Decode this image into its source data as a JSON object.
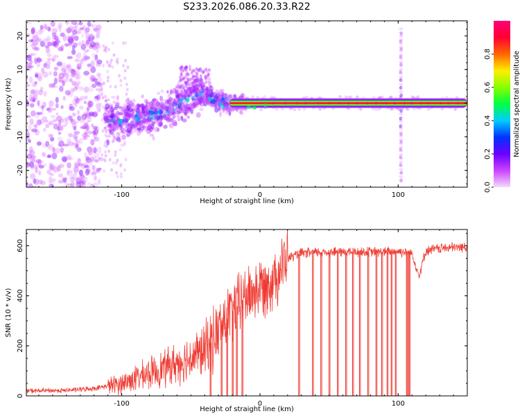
{
  "figure": {
    "title": "S233.2026.086.20.33.R22"
  },
  "colors": {
    "snr_line": "#ee3b32",
    "axis": "#000000",
    "colorbar_stops": [
      "#f2d9ff",
      "#cc44ff",
      "#6a00ff",
      "#0033ff",
      "#00ccff",
      "#00ff44",
      "#88ff00",
      "#ffee00",
      "#ff6600",
      "#ff0033",
      "#ff0077"
    ]
  },
  "chart_data": [
    {
      "type": "heatmap",
      "title": "S233.2026.086.20.33.R22",
      "xlabel": "Height of straight line (km)",
      "ylabel": "Frequency (Hz)",
      "xlim": [
        -169,
        150
      ],
      "ylim": [
        -25,
        24.5
      ],
      "xticks": [
        -100,
        0,
        100
      ],
      "yticks": [
        -20,
        -10,
        0,
        10,
        20
      ],
      "colorbar": {
        "label": "Normalized spectral amplitude",
        "range": [
          0,
          1
        ],
        "ticks": [
          0.0,
          0.2,
          0.4,
          0.6,
          0.8
        ]
      },
      "features": {
        "carrier_line": {
          "frequency_hz": 0,
          "x_start_km": -22,
          "x_end_km": 150,
          "amplitude": 0.9
        },
        "scatter_region_km": [
          -169,
          -115
        ],
        "dispersed_trend": {
          "x_km": [
            -100,
            -70,
            -45,
            -25,
            -10
          ],
          "center_freq_hz": [
            -5,
            -3,
            3,
            0,
            0
          ]
        },
        "vertical_spike_km": 102
      }
    },
    {
      "type": "line",
      "xlabel": "Height of straight line (km)",
      "ylabel": "SNR (10 * v/v)",
      "xlim": [
        -169,
        150
      ],
      "ylim": [
        0,
        665
      ],
      "xticks": [
        -100,
        0,
        100
      ],
      "yticks": [
        0,
        200,
        400,
        600
      ],
      "series": [
        {
          "name": "SNR",
          "x": [
            -169,
            -140,
            -120,
            -100,
            -80,
            -60,
            -40,
            -30,
            -20,
            -10,
            0,
            10,
            20,
            30,
            50,
            70,
            90,
            100,
            110,
            115,
            120,
            130,
            150
          ],
          "values": [
            20,
            22,
            30,
            50,
            90,
            130,
            180,
            260,
            340,
            400,
            430,
            470,
            550,
            570,
            575,
            575,
            575,
            578,
            570,
            480,
            580,
            590,
            595
          ]
        }
      ],
      "dropouts_km": [
        -36,
        -28,
        -24,
        -20,
        -17,
        -13,
        28,
        38,
        44,
        50,
        56,
        62,
        67,
        72,
        78,
        84,
        88,
        92,
        95,
        98,
        106,
        107,
        108
      ]
    }
  ]
}
